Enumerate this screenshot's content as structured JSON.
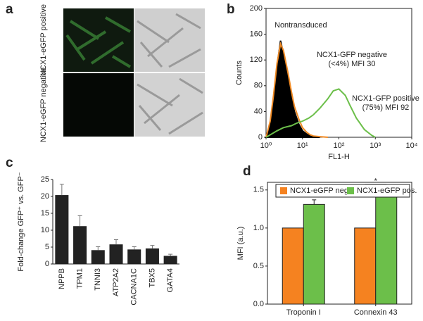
{
  "panel_a": {
    "panel_label": "a",
    "rows": [
      "NCX1-eGFP positive",
      "NCX1-eGFP negative"
    ]
  },
  "chart_data": [
    {
      "type": "line",
      "panel_label": "b",
      "x_label": "FL1-H",
      "y_label": "Counts",
      "x_log": true,
      "xlim": [
        1,
        10000
      ],
      "xticks": [
        {
          "value": 1,
          "label": "10⁰"
        },
        {
          "value": 10,
          "label": "10¹"
        },
        {
          "value": 100,
          "label": "10²"
        },
        {
          "value": 1000,
          "label": "10³"
        },
        {
          "value": 10000,
          "label": "10⁴"
        }
      ],
      "ylim": [
        0,
        200
      ],
      "yticks": [
        0,
        40,
        80,
        120,
        160,
        200
      ],
      "series": [
        {
          "name": "Nontransduced",
          "color": "#000000",
          "filled": true,
          "x": [
            1,
            1.3,
            1.6,
            2,
            2.5,
            3,
            4,
            5,
            6,
            8,
            10,
            13,
            16,
            20,
            30
          ],
          "values": [
            0,
            20,
            60,
            110,
            150,
            130,
            90,
            60,
            40,
            20,
            10,
            5,
            3,
            1,
            0
          ]
        },
        {
          "name": "NCX1-GFP negative",
          "note": "(<4%) MFI 30",
          "color": "#f08a24",
          "filled": false,
          "x": [
            1,
            1.3,
            1.6,
            2,
            2.5,
            3,
            4,
            5,
            6,
            8,
            10,
            13,
            16,
            20,
            30,
            50
          ],
          "values": [
            0,
            25,
            65,
            115,
            145,
            135,
            100,
            70,
            48,
            28,
            15,
            8,
            4,
            2,
            1,
            0
          ]
        },
        {
          "name": "NCX1-GFP positive",
          "note": "(75%) MFI 92",
          "color": "#6cbf4a",
          "filled": false,
          "x": [
            1,
            2,
            3,
            5,
            7,
            10,
            15,
            20,
            30,
            50,
            70,
            100,
            150,
            200,
            300,
            500,
            800,
            1000
          ],
          "values": [
            0,
            10,
            15,
            18,
            22,
            25,
            30,
            35,
            45,
            60,
            72,
            75,
            65,
            50,
            30,
            12,
            3,
            0
          ]
        }
      ]
    },
    {
      "type": "bar",
      "panel_label": "c",
      "y_label": "Fold-change GFP⁺ vs. GFP⁻",
      "color": "#222222",
      "categories": [
        "NPPB",
        "TPM1",
        "TNNI3",
        "ATP2A2",
        "CACNA1C",
        "TBX5",
        "GATA4"
      ],
      "values": [
        20.4,
        11.2,
        4.1,
        5.8,
        4.3,
        4.6,
        2.4
      ],
      "errors": [
        3.2,
        3.1,
        1.0,
        1.4,
        0.8,
        0.9,
        0.5
      ],
      "ylim": [
        0,
        25
      ],
      "yticks": [
        0,
        5,
        10,
        15,
        20,
        25
      ]
    },
    {
      "type": "grouped_bar",
      "panel_label": "d",
      "y_label": "MFI (a.u.)",
      "categories": [
        "Troponin I",
        "Connexin 43"
      ],
      "series": [
        {
          "name": "NCX1-eGFP neg.",
          "color": "#f58220",
          "values": [
            1.0,
            1.0
          ]
        },
        {
          "name": "NCX1-eGFP pos.",
          "color": "#6cbf4a",
          "values": [
            1.31,
            1.44
          ],
          "errors": [
            0.06,
            0.06
          ]
        }
      ],
      "annotations": [
        "*",
        "*"
      ],
      "ylim": [
        0,
        1.6
      ],
      "yticks": [
        {
          "value": 0,
          "label": "0.0"
        },
        0.5,
        {
          "value": 1,
          "label": "1.0"
        },
        1.5
      ]
    }
  ]
}
